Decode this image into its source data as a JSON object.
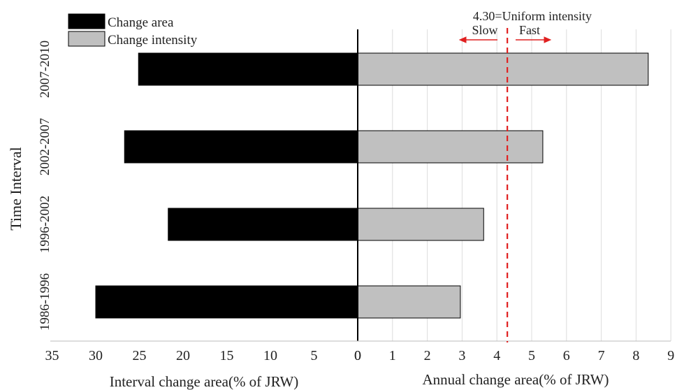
{
  "chart_data": {
    "type": "bar",
    "orientation": "horizontal",
    "ylabel": "Time Interval",
    "categories": [
      "2007-2010",
      "2002-2007",
      "1996-2002",
      "1986-1996"
    ],
    "series": [
      {
        "name": "Change area",
        "values": [
          25.1,
          26.7,
          21.7,
          30.0
        ],
        "color": "#000000"
      },
      {
        "name": "Change intensity",
        "values": [
          8.35,
          5.32,
          3.62,
          2.95
        ],
        "color": "#c0c0c0"
      }
    ],
    "left_axis": {
      "label": "Interval change area(% of JRW)",
      "ticks": [
        "35",
        "30",
        "25",
        "20",
        "15",
        "10",
        "5",
        "0"
      ],
      "range": [
        35,
        0
      ]
    },
    "right_axis": {
      "label": "Annual change area(% of JRW)",
      "ticks": [
        "0",
        "1",
        "2",
        "3",
        "4",
        "5",
        "6",
        "7",
        "8",
        "9"
      ],
      "range": [
        0,
        9
      ]
    },
    "uniform_line": {
      "value": 4.3,
      "label": "4.30=Uniform intensity",
      "slow_label": "Slow",
      "fast_label": "Fast",
      "color": "#e02020"
    },
    "legend_position": "top-left",
    "grid": "vertical-right"
  }
}
